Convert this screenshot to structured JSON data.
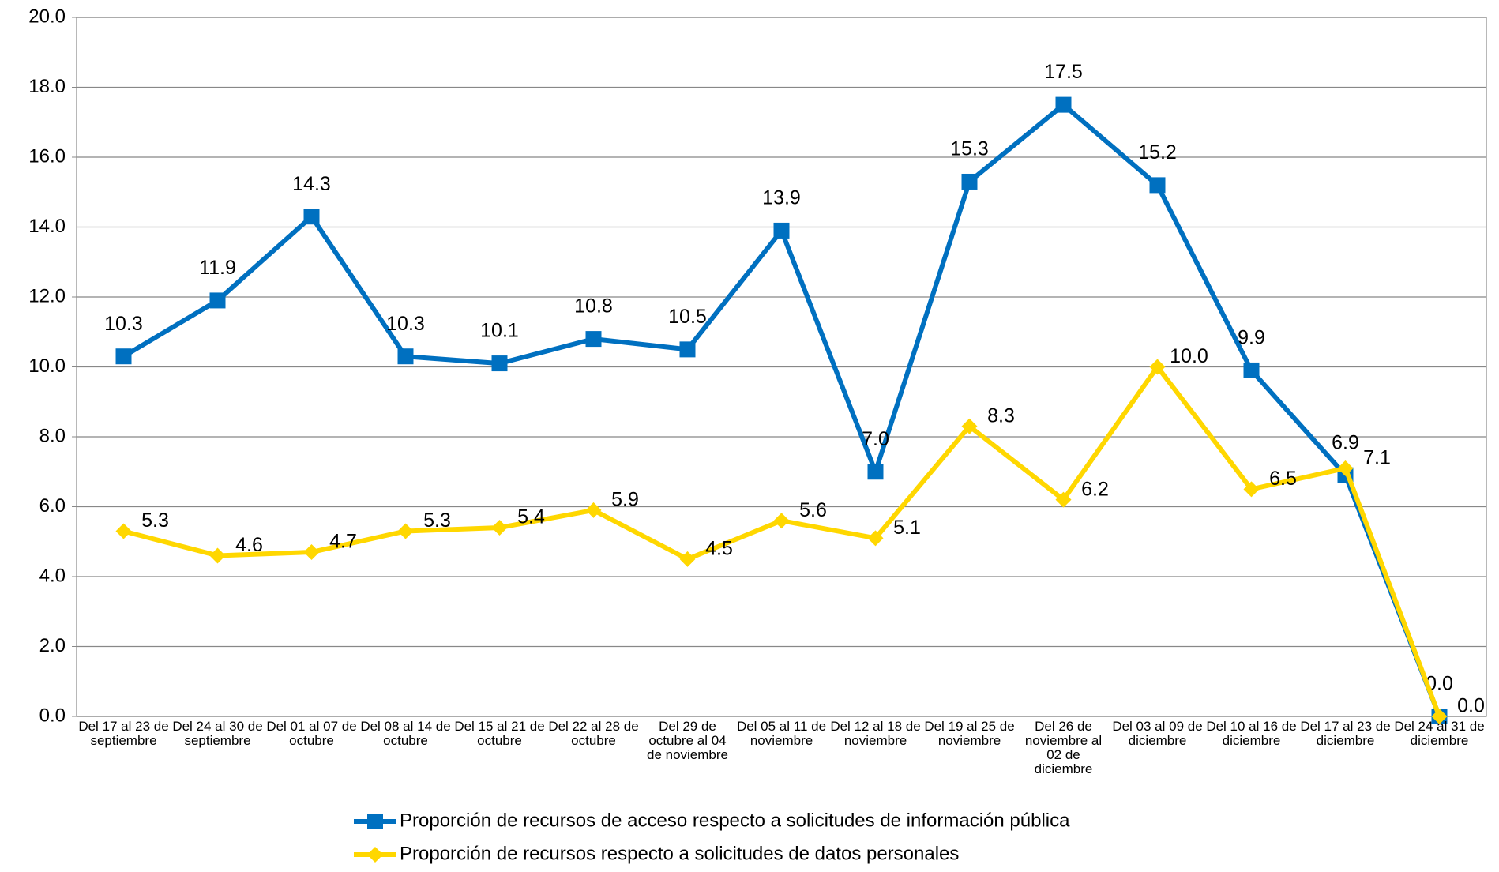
{
  "chart_data": {
    "type": "line",
    "categories": [
      "Del 17 al 23 de septiembre",
      "Del 24 al 30 de septiembre",
      "Del 01 al 07 de octubre",
      "Del 08 al 14 de octubre",
      "Del 15 al 21 de octubre",
      "Del 22 al 28 de octubre",
      "Del 29 de octubre al 04 de noviembre",
      "Del 05 al 11 de noviembre",
      "Del 12 al 18 de noviembre",
      "Del 19 al 25 de noviembre",
      "Del 26 de noviembre al 02 de diciembre",
      "Del 03 al 09 de diciembre",
      "Del 10 al 16 de diciembre",
      "Del 17 al 23 de diciembre",
      "Del 24 al 31 de diciembre"
    ],
    "series": [
      {
        "name": "Proporción de recursos de acceso respecto a solicitudes de información pública",
        "color": "#0070c0",
        "marker": "square",
        "values": [
          10.3,
          11.9,
          14.3,
          10.3,
          10.1,
          10.8,
          10.5,
          13.9,
          7.0,
          15.3,
          17.5,
          15.2,
          9.9,
          6.9,
          0.0
        ],
        "value_labels": [
          "10.3",
          "11.9",
          "14.3",
          "10.3",
          "10.1",
          "10.8",
          "10.5",
          "13.9",
          "7.0",
          "15.3",
          "17.5",
          "15.2",
          "9.9",
          "6.9",
          "0.0"
        ]
      },
      {
        "name": "Proporción de recursos respecto a solicitudes de datos personales",
        "color": "#ffd700",
        "marker": "diamond",
        "values": [
          5.3,
          4.6,
          4.7,
          5.3,
          5.4,
          5.9,
          4.5,
          5.6,
          5.1,
          8.3,
          6.2,
          10.0,
          6.5,
          7.1,
          0.0
        ],
        "value_labels": [
          "5.3",
          "4.6",
          "4.7",
          "5.3",
          "5.4",
          "5.9",
          "4.5",
          "5.6",
          "5.1",
          "8.3",
          "6.2",
          "10.0",
          "6.5",
          "7.1",
          "0.0"
        ]
      }
    ],
    "ylim": [
      0,
      20
    ],
    "yticks": [
      {
        "value": 0,
        "label": "0.0"
      },
      {
        "value": 2,
        "label": "2.0"
      },
      {
        "value": 4,
        "label": "4.0"
      },
      {
        "value": 6,
        "label": "6.0"
      },
      {
        "value": 8,
        "label": "8.0"
      },
      {
        "value": 10,
        "label": "10.0"
      },
      {
        "value": 12,
        "label": "12.0"
      },
      {
        "value": 14,
        "label": "14.0"
      },
      {
        "value": 16,
        "label": "16.0"
      },
      {
        "value": 18,
        "label": "18.0"
      },
      {
        "value": 20,
        "label": "20.0"
      }
    ],
    "grid": true,
    "legend": "bottom"
  }
}
